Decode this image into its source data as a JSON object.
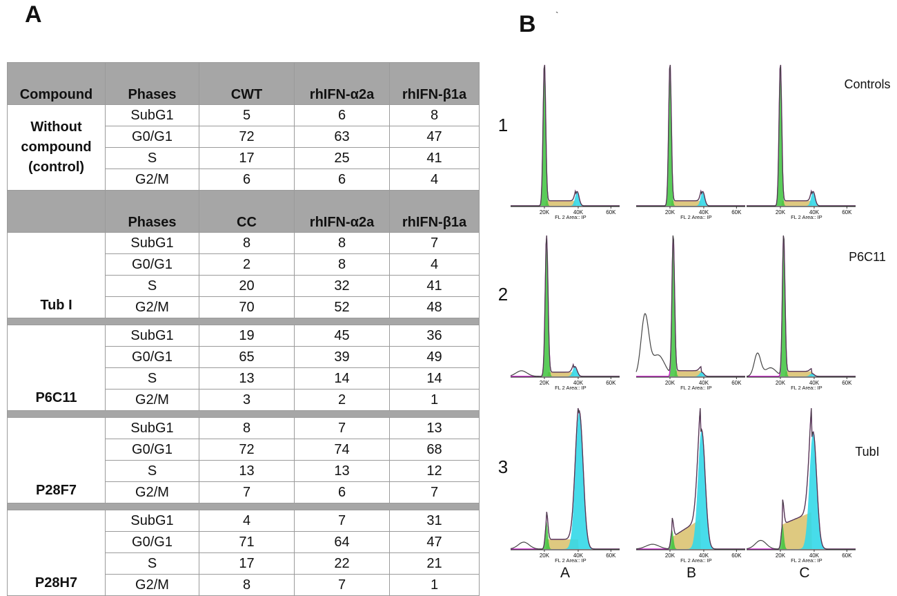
{
  "panel_a_label": "A",
  "panel_b_label": "B",
  "table": {
    "header1": [
      "Compound",
      "Phases",
      "CWT",
      "rhIFN-α2a",
      "rhIFN-β1a"
    ],
    "header2": [
      "",
      "Phases",
      "CC",
      "rhIFN-α2a",
      "rhIFN-β1a"
    ],
    "groups": [
      {
        "compound": "Without compound (control)",
        "rows": [
          [
            "SubG1",
            "5",
            "6",
            "8"
          ],
          [
            "G0/G1",
            "72",
            "63",
            "47"
          ],
          [
            "S",
            "17",
            "25",
            "41"
          ],
          [
            "G2/M",
            "6",
            "6",
            "4"
          ]
        ]
      },
      {
        "compound": "Tub I",
        "rows": [
          [
            "SubG1",
            "8",
            "8",
            "7"
          ],
          [
            "G0/G1",
            "2",
            "8",
            "4"
          ],
          [
            "S",
            "20",
            "32",
            "41"
          ],
          [
            "G2/M",
            "70",
            "52",
            "48"
          ]
        ]
      },
      {
        "compound": "P6C11",
        "rows": [
          [
            "SubG1",
            "19",
            "45",
            "36"
          ],
          [
            "G0/G1",
            "65",
            "39",
            "49"
          ],
          [
            "S",
            "13",
            "14",
            "14"
          ],
          [
            "G2/M",
            "3",
            "2",
            "1"
          ]
        ]
      },
      {
        "compound": "P28F7",
        "rows": [
          [
            "SubG1",
            "8",
            "7",
            "13"
          ],
          [
            "G0/G1",
            "72",
            "74",
            "68"
          ],
          [
            "S",
            "13",
            "13",
            "12"
          ],
          [
            "G2/M",
            "7",
            "6",
            "7"
          ]
        ]
      },
      {
        "compound": "P28H7",
        "rows": [
          [
            "SubG1",
            "4",
            "7",
            "31"
          ],
          [
            "G0/G1",
            "71",
            "64",
            "47"
          ],
          [
            "S",
            "17",
            "22",
            "21"
          ],
          [
            "G2/M",
            "8",
            "7",
            "1"
          ]
        ]
      }
    ]
  },
  "histograms": {
    "row_numbers": [
      "1",
      "2",
      "3"
    ],
    "row_labels": [
      "Controls",
      "P6C11",
      "TubI"
    ],
    "column_labels": [
      "A",
      "B",
      "C"
    ],
    "x_ticks": [
      "20K",
      "40K",
      "60K"
    ],
    "x_axis_label": "FL 2 Area:: IP",
    "colors": {
      "g1": "#3dc43d",
      "s": "#d8bf6a",
      "g2m": "#33d8e8",
      "fit": "#d11fd1",
      "raw": "#444444"
    }
  }
}
